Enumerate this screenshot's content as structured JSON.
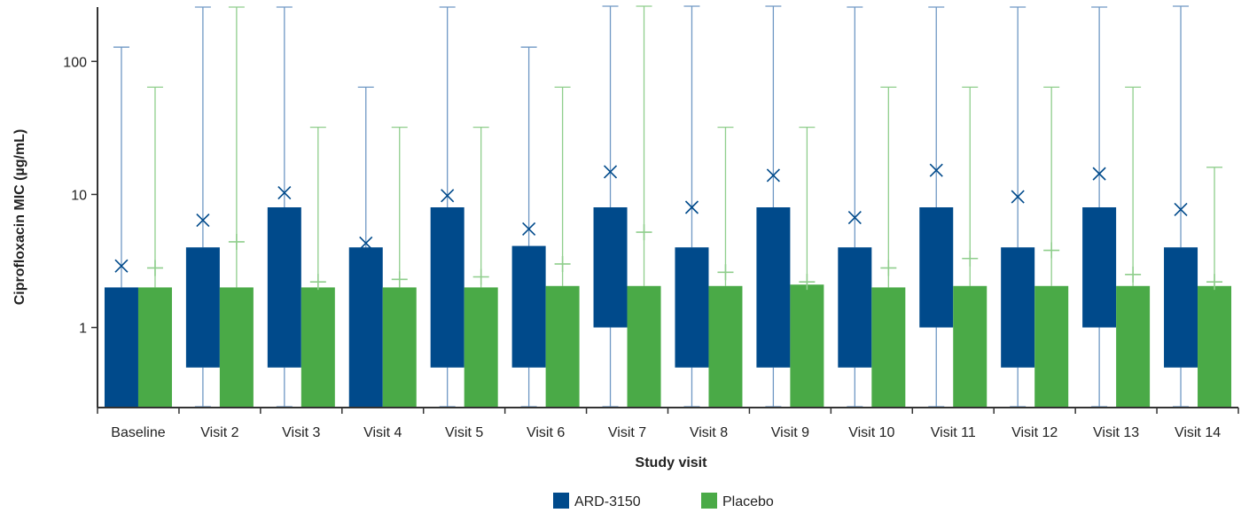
{
  "chart_data": {
    "type": "box",
    "title": "",
    "xlabel": "Study visit",
    "ylabel": "Ciprofloxacin MIC (µg/mL)",
    "yscale": "log",
    "ylim": [
      0.25,
      256
    ],
    "yticks": [
      1,
      10,
      100
    ],
    "ytick_labels": [
      "1",
      "10",
      "100"
    ],
    "grid": false,
    "legend_position": "bottom-center",
    "categories": [
      "Baseline",
      "Visit 2",
      "Visit 3",
      "Visit 4",
      "Visit 5",
      "Visit 6",
      "Visit 7",
      "Visit 8",
      "Visit 9",
      "Visit 10",
      "Visit 11",
      "Visit 12",
      "Visit 13",
      "Visit 14"
    ],
    "series": [
      {
        "name": "ARD-3150",
        "color": "#004a8b",
        "whisker_color": "#6f98c4",
        "mean_marker": "x",
        "boxes": [
          {
            "min": 0.25,
            "q1": 0.25,
            "median": 2,
            "q3": 2,
            "max": 128,
            "mean": 2.9
          },
          {
            "min": 0.25,
            "q1": 0.5,
            "median": 0.5,
            "q3": 4,
            "max": 256,
            "mean": 6.4
          },
          {
            "min": 0.25,
            "q1": 0.5,
            "median": 0.5,
            "q3": 8,
            "max": 256,
            "mean": 10.3
          },
          {
            "min": 0.25,
            "q1": 0.25,
            "median": 4,
            "q3": 4,
            "max": 64,
            "mean": 4.3
          },
          {
            "min": 0.25,
            "q1": 0.5,
            "median": 0.5,
            "q3": 8,
            "max": 256,
            "mean": 9.8
          },
          {
            "min": 0.25,
            "q1": 0.5,
            "median": 0.5,
            "q3": 4.1,
            "max": 128,
            "mean": 5.5
          },
          {
            "min": 0.25,
            "q1": 1,
            "median": 1,
            "q3": 8,
            "max": 260,
            "mean": 14.8
          },
          {
            "min": 0.25,
            "q1": 0.5,
            "median": 0.5,
            "q3": 4,
            "max": 260,
            "mean": 8
          },
          {
            "min": 0.25,
            "q1": 0.5,
            "median": 0.5,
            "q3": 8,
            "max": 260,
            "mean": 13.9
          },
          {
            "min": 0.25,
            "q1": 0.5,
            "median": 0.5,
            "q3": 4,
            "max": 256,
            "mean": 6.7
          },
          {
            "min": 0.25,
            "q1": 1,
            "median": 1,
            "q3": 8,
            "max": 256,
            "mean": 15.2
          },
          {
            "min": 0.25,
            "q1": 0.5,
            "median": 0.5,
            "q3": 4,
            "max": 256,
            "mean": 9.6
          },
          {
            "min": 0.25,
            "q1": 1,
            "median": 1,
            "q3": 8,
            "max": 256,
            "mean": 14.3
          },
          {
            "min": 0.25,
            "q1": 0.5,
            "median": 0.5,
            "q3": 4,
            "max": 260,
            "mean": 7.7
          }
        ]
      },
      {
        "name": "Placebo",
        "color": "#4aaa47",
        "whisker_color": "#8fce8c",
        "mean_marker": "+",
        "boxes": [
          {
            "min": 0.25,
            "q1": 0.25,
            "median": 2,
            "q3": 2,
            "max": 64,
            "mean": 2.8
          },
          {
            "min": 0.25,
            "q1": 0.25,
            "median": 2,
            "q3": 2,
            "max": 256,
            "mean": 4.4
          },
          {
            "min": 0.25,
            "q1": 0.25,
            "median": 2,
            "q3": 2,
            "max": 32,
            "mean": 2.2
          },
          {
            "min": 0.25,
            "q1": 0.25,
            "median": 2,
            "q3": 2,
            "max": 32,
            "mean": 2.3
          },
          {
            "min": 0.25,
            "q1": 0.25,
            "median": 2,
            "q3": 2,
            "max": 32,
            "mean": 2.4
          },
          {
            "min": 0.25,
            "q1": 0.25,
            "median": 2,
            "q3": 2.05,
            "max": 64,
            "mean": 3
          },
          {
            "min": 0.25,
            "q1": 0.25,
            "median": 2,
            "q3": 2.05,
            "max": 260,
            "mean": 5.2
          },
          {
            "min": 0.25,
            "q1": 0.25,
            "median": 2,
            "q3": 2.05,
            "max": 32,
            "mean": 2.6
          },
          {
            "min": 0.25,
            "q1": 0.25,
            "median": 2,
            "q3": 2.1,
            "max": 32,
            "mean": 2.2
          },
          {
            "min": 0.25,
            "q1": 0.25,
            "median": 2,
            "q3": 2,
            "max": 64,
            "mean": 2.8
          },
          {
            "min": 0.25,
            "q1": 0.25,
            "median": 2,
            "q3": 2.05,
            "max": 64,
            "mean": 3.3
          },
          {
            "min": 0.25,
            "q1": 0.25,
            "median": 2,
            "q3": 2.05,
            "max": 64,
            "mean": 3.8
          },
          {
            "min": 0.25,
            "q1": 0.25,
            "median": 2,
            "q3": 2.05,
            "max": 64,
            "mean": 2.5
          },
          {
            "min": 0.25,
            "q1": 0.25,
            "median": 2,
            "q3": 2.05,
            "max": 16,
            "mean": 2.2
          }
        ]
      }
    ],
    "axis_color": "#333333"
  }
}
